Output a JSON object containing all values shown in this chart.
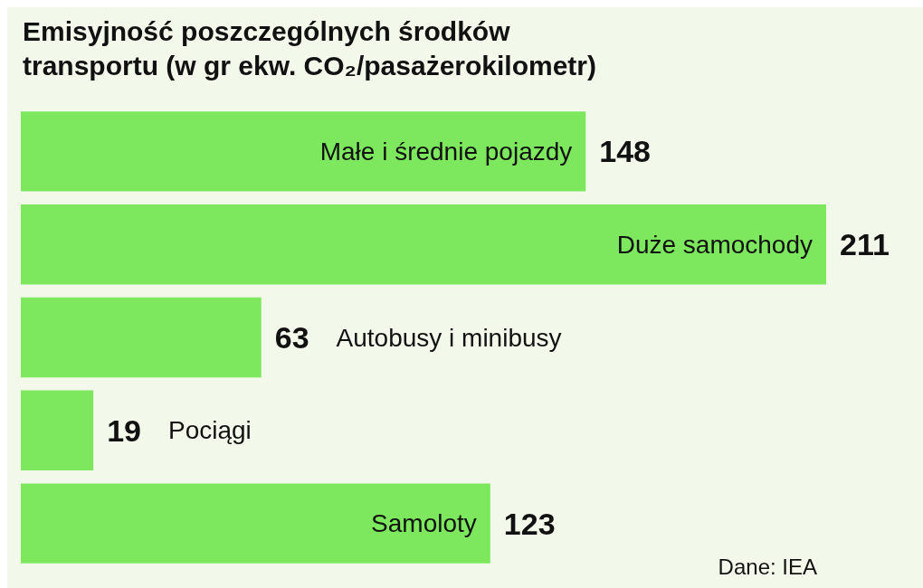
{
  "chart_data": {
    "type": "bar",
    "orientation": "horizontal",
    "title": "Emisyjność poszczególnych środków transportu (w gr ekw. CO₂/pasażerokilometr)",
    "categories": [
      "Małe i średnie pojazdy",
      "Duże samochody",
      "Autobusy i minibusy",
      "Pociągi",
      "Samoloty"
    ],
    "values": [
      148,
      211,
      63,
      19,
      123
    ],
    "color": "#7de85e",
    "data_labels": true,
    "annotations": [
      "Dane: IEA"
    ]
  }
}
